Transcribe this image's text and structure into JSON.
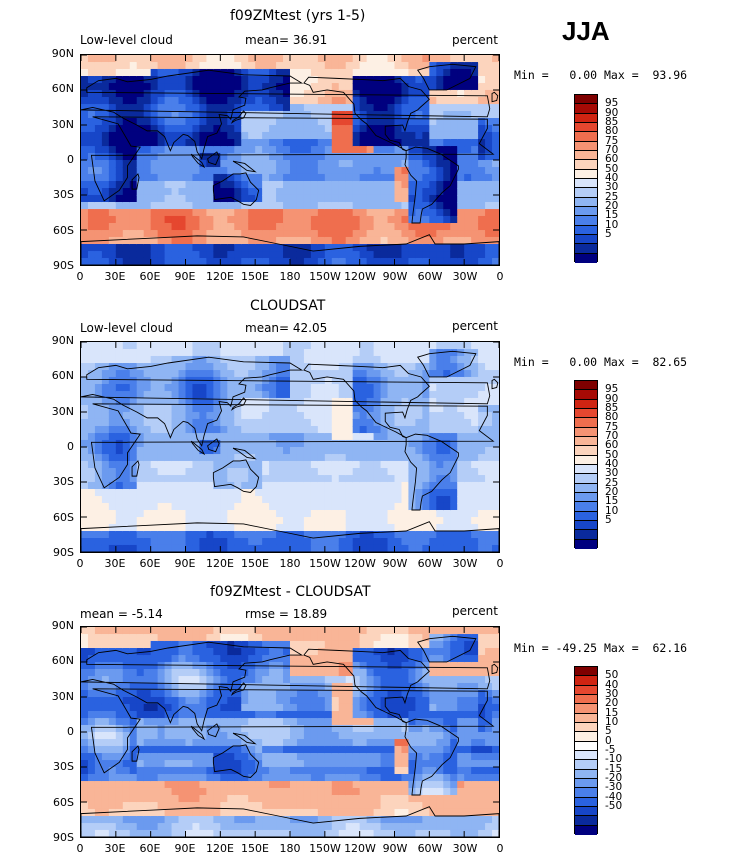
{
  "season": "JJA",
  "latitude_labels": [
    "90N",
    "60N",
    "30N",
    "0",
    "30S",
    "60S",
    "90S"
  ],
  "longitude_labels": [
    "0",
    "30E",
    "60E",
    "90E",
    "120E",
    "150E",
    "180",
    "150W",
    "120W",
    "90W",
    "60W",
    "30W",
    "0"
  ],
  "colors": {
    "abs_scale": [
      "#00007f",
      "#0a2a9c",
      "#1746c8",
      "#2a62e0",
      "#4a7fea",
      "#6b9aef",
      "#8fb5f3",
      "#b4cdf7",
      "#d9e5fb",
      "#fdf0e4",
      "#fcd4bd",
      "#f9b597",
      "#f59373",
      "#ef6e4e",
      "#e5472f",
      "#cf2412",
      "#a60a05",
      "#7f0000"
    ],
    "diff_scale": [
      "#00007f",
      "#0a2a9c",
      "#1746c8",
      "#2a62e0",
      "#4a7fea",
      "#6b9aef",
      "#8fb5f3",
      "#b4cdf7",
      "#d9e5fb",
      "#ffffff",
      "#fdf0e4",
      "#fcd4bd",
      "#f9b597",
      "#f59373",
      "#ef6e4e",
      "#e5472f",
      "#cf2412",
      "#7f0000"
    ]
  },
  "panels": [
    {
      "title": "f09ZMtest (yrs 1-5)",
      "header_left": "Low-level cloud",
      "header_mid": "mean=  36.91",
      "header_right": "percent",
      "stats": "Min =   0.00 Max =  93.96",
      "colorbar_labels": [
        "95",
        "90",
        "85",
        "80",
        "75",
        "70",
        "60",
        "50",
        "40",
        "30",
        "25",
        "20",
        "15",
        "10",
        "5"
      ],
      "field": "model"
    },
    {
      "title": "CLOUDSAT",
      "header_left": "Low-level cloud",
      "header_mid": "mean=  42.05",
      "header_right": "percent",
      "stats": "Min =   0.00 Max =  82.65",
      "colorbar_labels": [
        "95",
        "90",
        "85",
        "80",
        "75",
        "70",
        "60",
        "50",
        "40",
        "30",
        "25",
        "20",
        "15",
        "10",
        "5"
      ],
      "field": "obs"
    },
    {
      "title": "f09ZMtest - CLOUDSAT",
      "header_left": "mean =  -5.14",
      "header_mid": "rmse =  18.89",
      "header_right": "percent",
      "stats": "Min = -49.25 Max =  62.16",
      "colorbar_labels": [
        "50",
        "40",
        "30",
        "20",
        "15",
        "10",
        "5",
        "0",
        "-5",
        "-10",
        "-15",
        "-20",
        "-30",
        "-40",
        "-50"
      ],
      "field": "diff"
    }
  ]
}
